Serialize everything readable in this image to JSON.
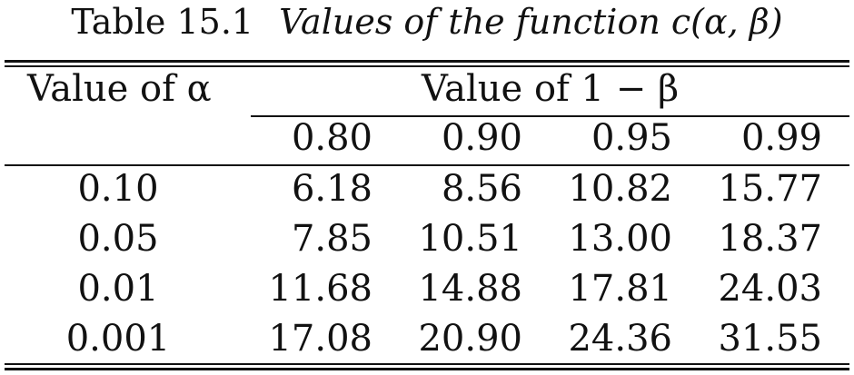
{
  "caption": {
    "label": "Table 15.1",
    "title": "Values of the function c(α, β)"
  },
  "header": {
    "alpha": "Value of α",
    "beta": "Value of 1 − β",
    "columns": [
      "0.80",
      "0.90",
      "0.95",
      "0.99"
    ]
  },
  "rows": [
    {
      "alpha": "0.10",
      "values": [
        "6.18",
        "8.56",
        "10.82",
        "15.77"
      ]
    },
    {
      "alpha": "0.05",
      "values": [
        "7.85",
        "10.51",
        "13.00",
        "18.37"
      ]
    },
    {
      "alpha": "0.01",
      "values": [
        "11.68",
        "14.88",
        "17.81",
        "24.03"
      ]
    },
    {
      "alpha": "0.001",
      "values": [
        "17.08",
        "20.90",
        "24.36",
        "31.55"
      ]
    }
  ]
}
